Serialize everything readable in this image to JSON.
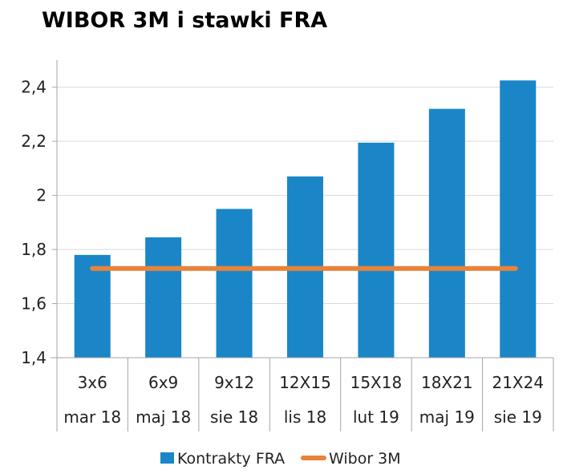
{
  "chart_data": {
    "type": "bar",
    "title": "WIBOR 3M i stawki FRA",
    "categories": [
      "3x6",
      "6x9",
      "9x12",
      "12X15",
      "15X18",
      "18X21",
      "21X24"
    ],
    "category_dates": [
      "mar 18",
      "maj 18",
      "sie 18",
      "lis 18",
      "lut 19",
      "maj 19",
      "sie 19"
    ],
    "series": [
      {
        "name": "Kontrakty FRA",
        "type": "bar",
        "color": "#1a86c8",
        "values": [
          1.78,
          1.845,
          1.95,
          2.07,
          2.195,
          2.32,
          2.425
        ]
      },
      {
        "name": "Wibor 3M",
        "type": "line",
        "color": "#e8833a",
        "values": [
          1.73,
          1.73,
          1.73,
          1.73,
          1.73,
          1.73,
          1.73
        ]
      }
    ],
    "ylim": [
      1.4,
      2.5
    ],
    "yticks": [
      1.4,
      1.6,
      1.8,
      2.0,
      2.2,
      2.4
    ],
    "ytick_labels": [
      "1,4",
      "1,6",
      "1,8",
      "2",
      "2,2",
      "2,4"
    ],
    "grid": true,
    "legend": "bottom"
  }
}
